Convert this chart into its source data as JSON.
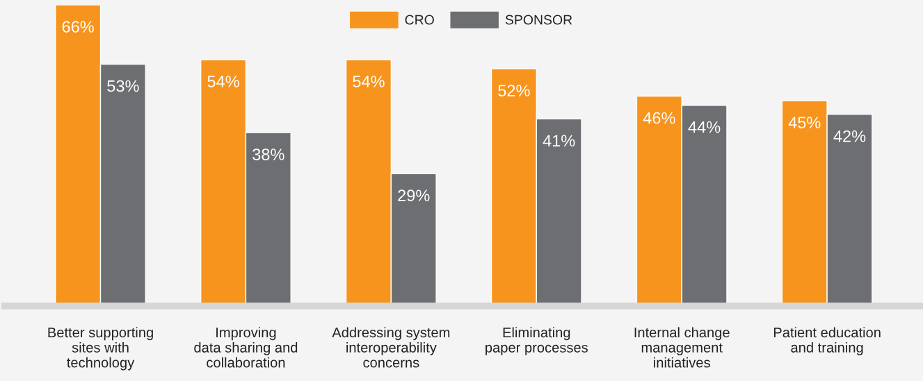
{
  "chart_data": {
    "type": "bar",
    "categories": [
      "Better supporting\nsites with\ntechnology",
      "Improving\ndata sharing and\ncollaboration",
      "Addressing system\ninteroperability\nconcerns",
      "Eliminating\npaper processes",
      "Internal change\nmanagement\ninitiatives",
      "Patient education\nand training"
    ],
    "series": [
      {
        "name": "CRO",
        "color": "#f7941d",
        "values": [
          66,
          54,
          54,
          52,
          46,
          45
        ],
        "value_labels": [
          "66%",
          "54%",
          "54%",
          "52%",
          "46%",
          "45%"
        ]
      },
      {
        "name": "SPONSOR",
        "color": "#6d6e71",
        "values": [
          53,
          38,
          29,
          41,
          44,
          42
        ],
        "value_labels": [
          "53%",
          "38%",
          "29%",
          "41%",
          "44%",
          "42%"
        ]
      }
    ],
    "legend": "top",
    "grid": false
  }
}
